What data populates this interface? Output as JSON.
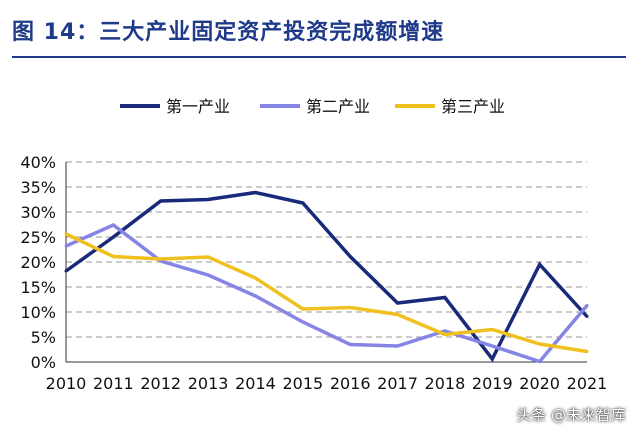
{
  "header": {
    "title": "图 14：三大产业固定资产投资完成额增速"
  },
  "watermark": "头条 @未来智库",
  "chart_data": {
    "type": "line",
    "title": "",
    "xlabel": "",
    "ylabel": "",
    "categories": [
      "2010",
      "2011",
      "2012",
      "2013",
      "2014",
      "2015",
      "2016",
      "2017",
      "2018",
      "2019",
      "2020",
      "2021"
    ],
    "ylim": [
      0,
      40
    ],
    "yticks": [
      0,
      5,
      10,
      15,
      20,
      25,
      30,
      35,
      40
    ],
    "ytick_labels": [
      "0%",
      "5%",
      "10%",
      "15%",
      "20%",
      "25%",
      "30%",
      "35%",
      "40%"
    ],
    "grid": true,
    "legend_position": "top",
    "series": [
      {
        "name": "第一产业",
        "color": "#1a2a7a",
        "values": [
          18.2,
          25.0,
          32.2,
          32.5,
          33.9,
          31.8,
          21.1,
          11.8,
          12.9,
          0.6,
          19.5,
          9.1
        ]
      },
      {
        "name": "第二产业",
        "color": "#8585e6",
        "values": [
          23.2,
          27.4,
          20.2,
          17.4,
          13.2,
          8.0,
          3.5,
          3.2,
          6.2,
          3.2,
          0.1,
          11.3
        ]
      },
      {
        "name": "第三产业",
        "color": "#f0c020",
        "values": [
          25.6,
          21.1,
          20.6,
          21.0,
          16.8,
          10.6,
          10.9,
          9.5,
          5.5,
          6.5,
          3.6,
          2.1
        ]
      }
    ]
  }
}
